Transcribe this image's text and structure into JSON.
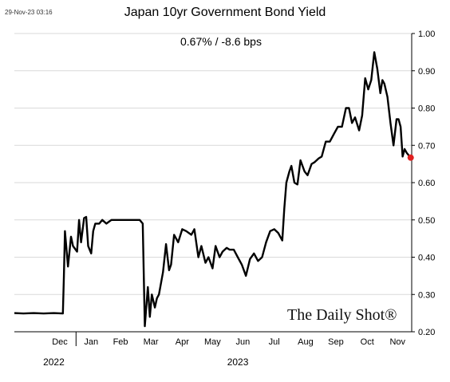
{
  "timestamp": "29-Nov-23 03:16",
  "watermark": "The Daily Shot®",
  "chart_data": {
    "type": "line",
    "title": "Japan 10yr Government Bond Yield",
    "subtitle": "0.67%  /  -8.6 bps",
    "xlabel": "",
    "ylabel": "",
    "ylim": [
      0.2,
      1.0
    ],
    "y_ticks": [
      "0.20",
      "0.30",
      "0.40",
      "0.50",
      "0.60",
      "0.70",
      "0.80",
      "0.90",
      "1.00"
    ],
    "y_axis_position": "right",
    "grid": true,
    "x_range": [
      "2022-11-01",
      "2023-11-29"
    ],
    "x_ticks": [
      {
        "label": "Dec",
        "date": "2022-12-16"
      },
      {
        "label": "Jan",
        "date": "2023-01-16"
      },
      {
        "label": "Feb",
        "date": "2023-02-14"
      },
      {
        "label": "Mar",
        "date": "2023-03-16"
      },
      {
        "label": "Apr",
        "date": "2023-04-16"
      },
      {
        "label": "May",
        "date": "2023-05-16"
      },
      {
        "label": "Jun",
        "date": "2023-06-15"
      },
      {
        "label": "Jul",
        "date": "2023-07-16"
      },
      {
        "label": "Aug",
        "date": "2023-08-16"
      },
      {
        "label": "Sep",
        "date": "2023-09-15"
      },
      {
        "label": "Oct",
        "date": "2023-10-16"
      },
      {
        "label": "Nov",
        "date": "2023-11-15"
      }
    ],
    "year_labels": [
      {
        "label": "2022",
        "date": "2022-12-10"
      },
      {
        "label": "2023",
        "date": "2023-06-10"
      }
    ],
    "year_divider_date": "2023-01-01",
    "series": [
      {
        "color": "#000000",
        "x": [
          "2022-11-01",
          "2022-11-10",
          "2022-11-20",
          "2022-11-30",
          "2022-12-10",
          "2022-12-19",
          "2022-12-20",
          "2022-12-21",
          "2022-12-22",
          "2022-12-24",
          "2022-12-27",
          "2022-12-29",
          "2023-01-02",
          "2023-01-04",
          "2023-01-06",
          "2023-01-09",
          "2023-01-11",
          "2023-01-13",
          "2023-01-16",
          "2023-01-18",
          "2023-01-20",
          "2023-01-24",
          "2023-01-27",
          "2023-01-31",
          "2023-02-05",
          "2023-02-15",
          "2023-02-25",
          "2023-03-05",
          "2023-03-08",
          "2023-03-10",
          "2023-03-13",
          "2023-03-15",
          "2023-03-17",
          "2023-03-20",
          "2023-03-22",
          "2023-03-24",
          "2023-03-28",
          "2023-03-31",
          "2023-04-03",
          "2023-04-05",
          "2023-04-08",
          "2023-04-12",
          "2023-04-16",
          "2023-04-20",
          "2023-04-25",
          "2023-04-28",
          "2023-05-02",
          "2023-05-05",
          "2023-05-09",
          "2023-05-12",
          "2023-05-16",
          "2023-05-19",
          "2023-05-23",
          "2023-05-26",
          "2023-05-30",
          "2023-06-02",
          "2023-06-06",
          "2023-06-10",
          "2023-06-14",
          "2023-06-18",
          "2023-06-22",
          "2023-06-26",
          "2023-06-30",
          "2023-07-04",
          "2023-07-08",
          "2023-07-12",
          "2023-07-16",
          "2023-07-20",
          "2023-07-24",
          "2023-07-26",
          "2023-07-28",
          "2023-07-31",
          "2023-08-02",
          "2023-08-05",
          "2023-08-08",
          "2023-08-11",
          "2023-08-15",
          "2023-08-18",
          "2023-08-22",
          "2023-08-25",
          "2023-08-29",
          "2023-09-01",
          "2023-09-05",
          "2023-09-09",
          "2023-09-13",
          "2023-09-17",
          "2023-09-21",
          "2023-09-25",
          "2023-09-28",
          "2023-10-01",
          "2023-10-04",
          "2023-10-08",
          "2023-10-11",
          "2023-10-14",
          "2023-10-17",
          "2023-10-20",
          "2023-10-23",
          "2023-10-26",
          "2023-10-29",
          "2023-10-31",
          "2023-11-02",
          "2023-11-05",
          "2023-11-08",
          "2023-11-11",
          "2023-11-14",
          "2023-11-16",
          "2023-11-18",
          "2023-11-20",
          "2023-11-22",
          "2023-11-24",
          "2023-11-27",
          "2023-11-28"
        ],
        "y": [
          0.25,
          0.249,
          0.25,
          0.249,
          0.25,
          0.249,
          0.35,
          0.47,
          0.44,
          0.375,
          0.455,
          0.43,
          0.415,
          0.5,
          0.44,
          0.505,
          0.508,
          0.43,
          0.41,
          0.47,
          0.49,
          0.49,
          0.5,
          0.49,
          0.5,
          0.5,
          0.5,
          0.5,
          0.49,
          0.215,
          0.32,
          0.24,
          0.3,
          0.265,
          0.29,
          0.3,
          0.36,
          0.435,
          0.365,
          0.38,
          0.46,
          0.44,
          0.475,
          0.47,
          0.46,
          0.475,
          0.4,
          0.43,
          0.385,
          0.4,
          0.37,
          0.43,
          0.4,
          0.415,
          0.425,
          0.42,
          0.42,
          0.4,
          0.38,
          0.35,
          0.395,
          0.41,
          0.39,
          0.4,
          0.44,
          0.47,
          0.475,
          0.465,
          0.445,
          0.53,
          0.6,
          0.63,
          0.645,
          0.6,
          0.595,
          0.66,
          0.63,
          0.62,
          0.65,
          0.655,
          0.665,
          0.67,
          0.71,
          0.71,
          0.73,
          0.75,
          0.75,
          0.8,
          0.8,
          0.76,
          0.775,
          0.74,
          0.78,
          0.88,
          0.85,
          0.875,
          0.95,
          0.905,
          0.84,
          0.875,
          0.865,
          0.83,
          0.76,
          0.7,
          0.77,
          0.77,
          0.75,
          0.67,
          0.69,
          0.68,
          0.67,
          0.667
        ]
      }
    ],
    "last_point": {
      "date": "2023-11-28",
      "value": 0.667,
      "marker_color": "#e02020"
    }
  }
}
